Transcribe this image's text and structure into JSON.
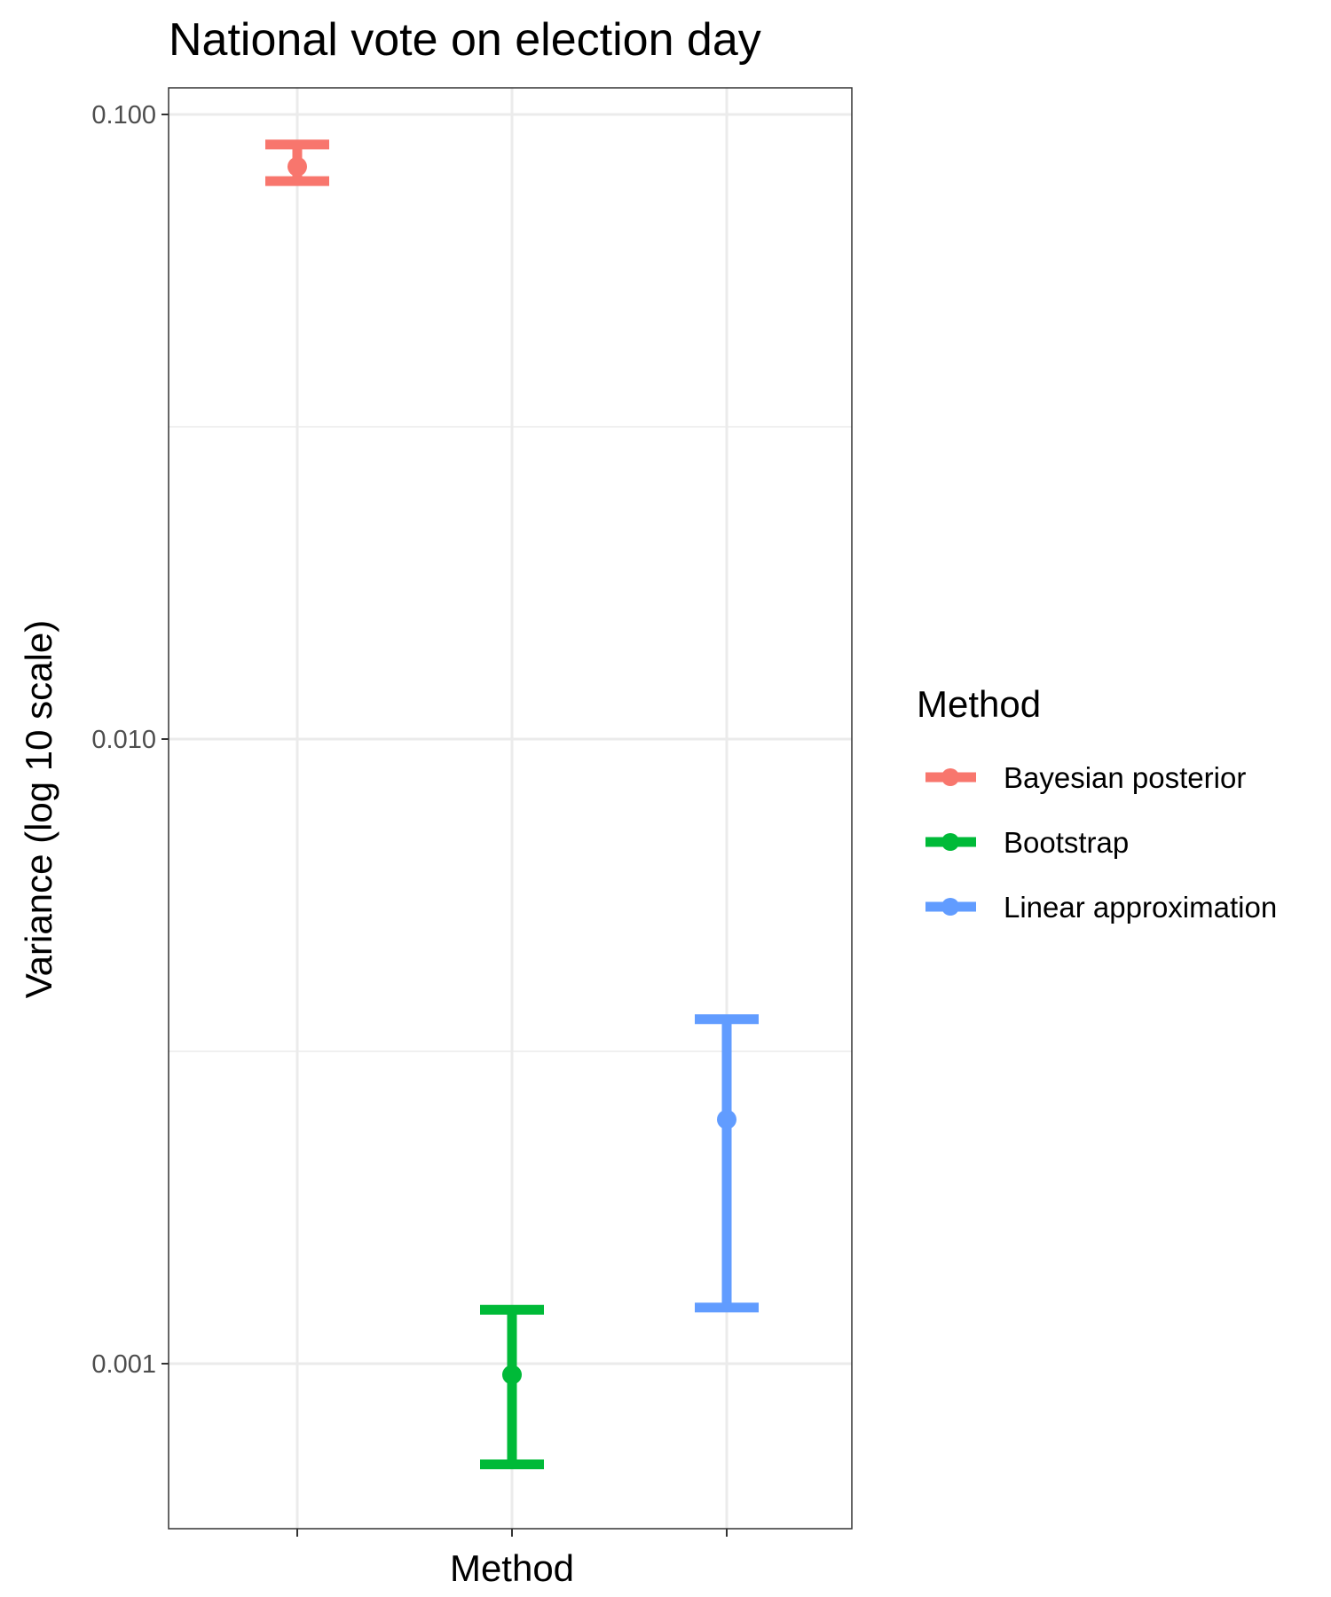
{
  "chart_data": {
    "type": "errorbar",
    "title": "National vote on election day",
    "xlabel": "Method",
    "ylabel": "Variance (log 10 scale)",
    "y_scale": "log10",
    "ylim": [
      0.00054,
      0.112
    ],
    "yticks": [
      0.1,
      0.01,
      0.001
    ],
    "ytick_labels": [
      "0.100",
      "0.010",
      "0.001"
    ],
    "grid": true,
    "legend": {
      "title": "Method",
      "position": "right"
    },
    "series": [
      {
        "name": "Bayesian posterior",
        "color": "#F8766D",
        "estimate": 0.0825,
        "lower": 0.0782,
        "upper": 0.0895
      },
      {
        "name": "Bootstrap",
        "color": "#00BA38",
        "estimate": 0.00096,
        "lower": 0.00069,
        "upper": 0.00122
      },
      {
        "name": "Linear approximation",
        "color": "#619CFF",
        "estimate": 0.00246,
        "lower": 0.00123,
        "upper": 0.00356
      }
    ]
  }
}
